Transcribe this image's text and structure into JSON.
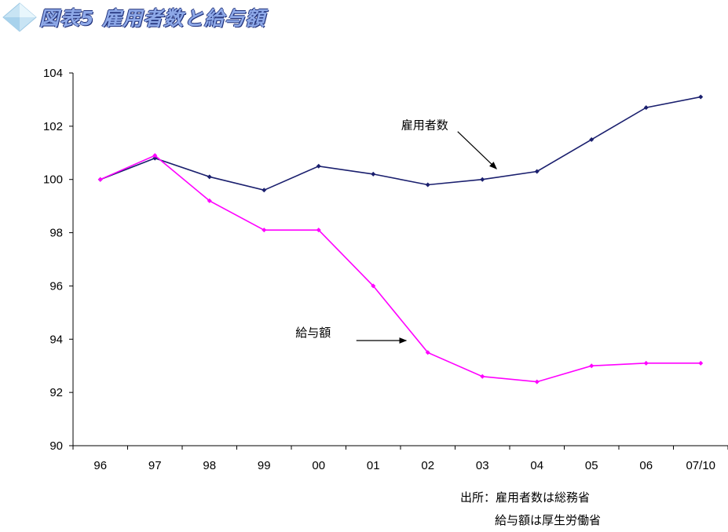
{
  "title": "図表5 雇用者数と給与額",
  "chart_data": {
    "type": "line",
    "title": "図表5 雇用者数と給与額",
    "categories": [
      "96",
      "97",
      "98",
      "99",
      "00",
      "01",
      "02",
      "03",
      "04",
      "05",
      "06",
      "07/10"
    ],
    "series": [
      {
        "name": "雇用者数",
        "color": "#1a1f6e",
        "values": [
          100.0,
          100.8,
          100.1,
          99.6,
          100.5,
          100.2,
          99.8,
          100.0,
          100.3,
          101.5,
          102.7,
          103.1
        ]
      },
      {
        "name": "給与額",
        "color": "#ff00ff",
        "values": [
          100.0,
          100.9,
          99.2,
          98.1,
          98.1,
          96.0,
          93.5,
          92.6,
          92.4,
          93.0,
          93.1,
          93.1
        ]
      }
    ],
    "ylim": [
      90,
      104
    ],
    "yticks": [
      90,
      92,
      94,
      96,
      98,
      100,
      102,
      104
    ],
    "xlabel": "",
    "ylabel": "",
    "grid": false,
    "annotations": [
      {
        "text": "雇用者数",
        "series": "雇用者数"
      },
      {
        "text": "給与額",
        "series": "給与額"
      }
    ]
  },
  "source": {
    "line1": "出所：雇用者数は総務省",
    "line2": "給与額は厚生労働省"
  }
}
